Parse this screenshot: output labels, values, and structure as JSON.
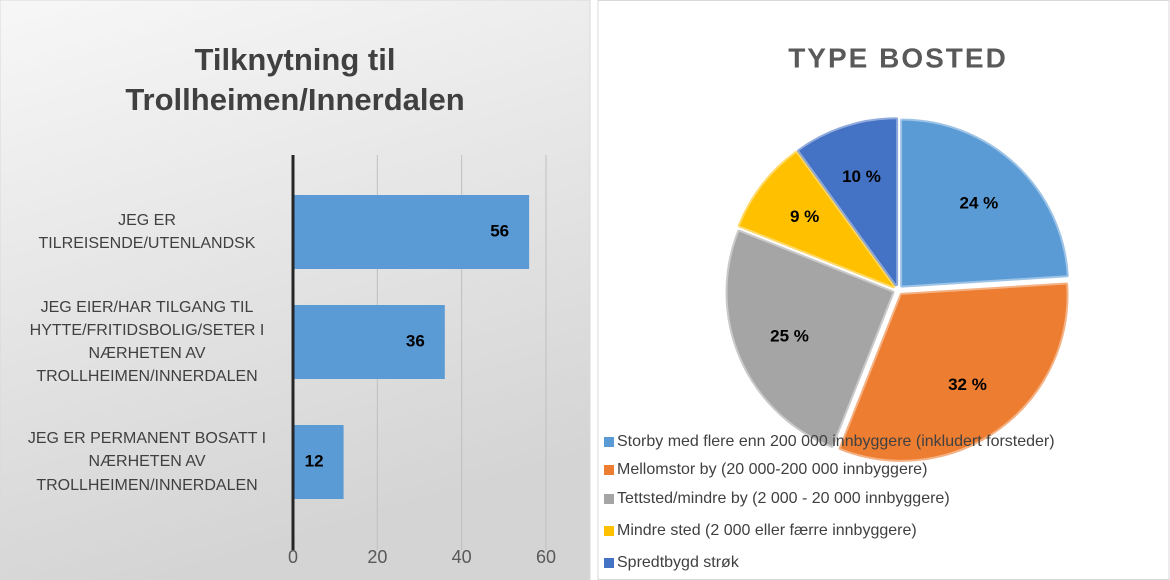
{
  "chart_data": [
    {
      "type": "bar",
      "title": "Tilknytning til Trollheimen/Innerdalen",
      "categories": [
        "JEG ER TILREISENDE/UTENLANDSK",
        "JEG EIER/HAR TILGANG TIL HYTTE/FRITIDSBOLIG/SETER I NÆRHETEN AV TROLLHEIMEN/INNERDALEN",
        "JEG ER PERMANENT BOSATT I NÆRHETEN AV TROLLHEIMEN/INNERDALEN"
      ],
      "values": [
        56,
        36,
        12
      ],
      "color": "#5b9bd5",
      "xlim": [
        0,
        60
      ],
      "xticks": [
        0,
        20,
        40,
        60
      ],
      "grid": true
    },
    {
      "type": "pie",
      "title": "TYPE BOSTED",
      "categories": [
        "Storby med flere enn 200 000 innbyggere (inkludert forsteder)",
        "Mellomstor by (20 000-200 000 innbyggere)",
        "Tettsted/mindre by (2 000 - 20 000 innbyggere)",
        "Mindre sted (2 000 eller færre innbyggere)",
        "Spredtbygd strøk"
      ],
      "values": [
        24,
        32,
        25,
        9,
        10
      ],
      "value_labels": [
        "24 %",
        "32 %",
        "25 %",
        "9 %",
        "10 %"
      ],
      "colors": [
        "#5b9bd5",
        "#ed7d31",
        "#a5a5a5",
        "#ffc000",
        "#4472c4"
      ],
      "legend": "bottom"
    }
  ]
}
